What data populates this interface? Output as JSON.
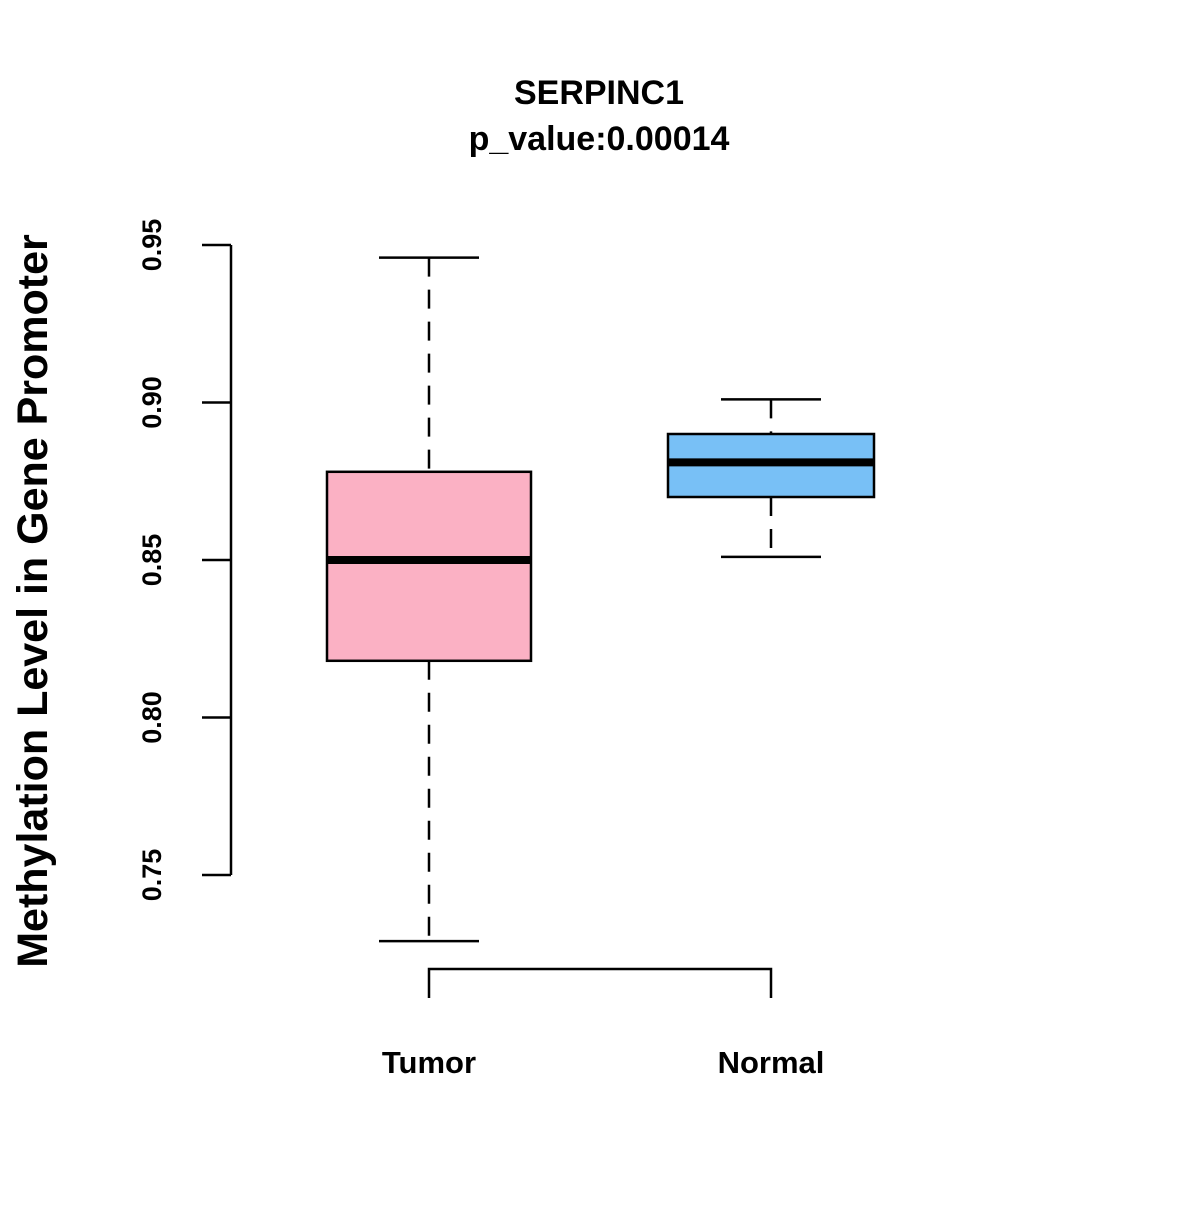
{
  "chart_data": {
    "type": "boxplot",
    "title": "SERPINC1",
    "subtitle": "p_value:0.00014",
    "xlabel": "",
    "ylabel": "Methylation Level in Gene Promoter",
    "ylim": [
      0.75,
      0.95
    ],
    "yticks": [
      0.75,
      0.8,
      0.85,
      0.9,
      0.95
    ],
    "ytick_labels": [
      "0.75",
      "0.80",
      "0.85",
      "0.90",
      "0.95"
    ],
    "grid": false,
    "categories": [
      "Tumor",
      "Normal"
    ],
    "boxes": [
      {
        "name": "Tumor",
        "whisker_low": 0.729,
        "q1": 0.818,
        "median": 0.85,
        "q3": 0.878,
        "whisker_high": 0.946,
        "fill": "#FBB1C4"
      },
      {
        "name": "Normal",
        "whisker_low": 0.851,
        "q1": 0.87,
        "median": 0.881,
        "q3": 0.89,
        "whisker_high": 0.901,
        "fill": "#78C0F6"
      }
    ],
    "comparison_bracket": {
      "groups": [
        "Tumor",
        "Normal"
      ],
      "label": ""
    }
  }
}
